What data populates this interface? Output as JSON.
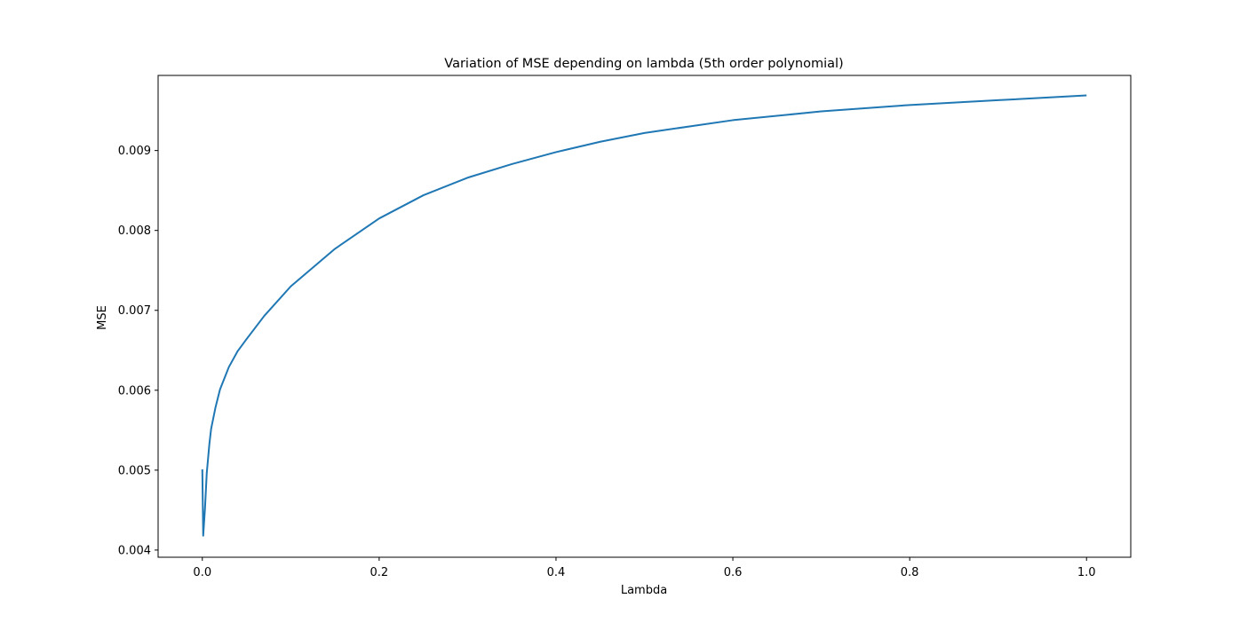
{
  "chart_data": {
    "type": "line",
    "title": "Variation of MSE depending on lambda (5th order polynomial)",
    "xlabel": "Lambda",
    "ylabel": "MSE",
    "xlim": [
      -0.05,
      1.05
    ],
    "ylim": [
      0.00391,
      0.00994
    ],
    "xticks": [
      0.0,
      0.2,
      0.4,
      0.6,
      0.8,
      1.0
    ],
    "xtick_labels": [
      "0.0",
      "0.2",
      "0.4",
      "0.6",
      "0.8",
      "1.0"
    ],
    "yticks": [
      0.004,
      0.005,
      0.006,
      0.007,
      0.008,
      0.009
    ],
    "ytick_labels": [
      "0.004",
      "0.005",
      "0.006",
      "0.007",
      "0.008",
      "0.009"
    ],
    "grid": false,
    "legend": null,
    "series": [
      {
        "color": "#1f77b4",
        "x": [
          0.0,
          0.001,
          0.003,
          0.005,
          0.008,
          0.01,
          0.015,
          0.02,
          0.03,
          0.04,
          0.05,
          0.07,
          0.1,
          0.15,
          0.2,
          0.25,
          0.3,
          0.35,
          0.4,
          0.45,
          0.5,
          0.6,
          0.7,
          0.8,
          0.9,
          1.0
        ],
        "y": [
          0.00501,
          0.00418,
          0.00452,
          0.00496,
          0.00533,
          0.00552,
          0.00579,
          0.00601,
          0.00629,
          0.00649,
          0.00664,
          0.00693,
          0.0073,
          0.00777,
          0.00815,
          0.00844,
          0.00866,
          0.00883,
          0.00898,
          0.00911,
          0.00922,
          0.00938,
          0.00949,
          0.00957,
          0.00963,
          0.00969
        ]
      }
    ]
  }
}
